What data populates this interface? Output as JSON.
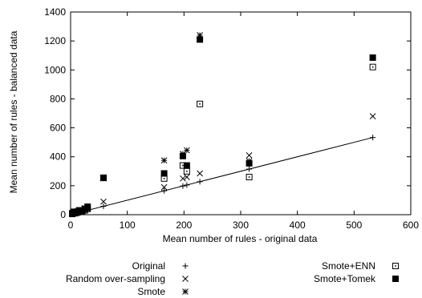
{
  "chart_data": {
    "type": "scatter",
    "xlabel": "Mean number of rules - original data",
    "ylabel": "Mean number of rules - balanced data",
    "xlim": [
      0,
      600
    ],
    "ylim": [
      0,
      1400
    ],
    "xticks": [
      0,
      100,
      200,
      300,
      400,
      500,
      600
    ],
    "yticks": [
      0,
      200,
      400,
      600,
      800,
      1000,
      1200,
      1400
    ],
    "grid": false,
    "legend_position": "bottom",
    "reference_line": {
      "from": [
        0,
        0
      ],
      "to": [
        533,
        533
      ]
    },
    "series": [
      {
        "name": "Original",
        "marker": "plus",
        "points": [
          [
            3,
            3
          ],
          [
            5,
            5
          ],
          [
            8,
            8
          ],
          [
            10,
            10
          ],
          [
            12,
            12
          ],
          [
            15,
            15
          ],
          [
            18,
            18
          ],
          [
            20,
            20
          ],
          [
            22,
            22
          ],
          [
            25,
            25
          ],
          [
            27,
            27
          ],
          [
            30,
            30
          ],
          [
            58,
            58
          ],
          [
            165,
            165
          ],
          [
            198,
            198
          ],
          [
            205,
            205
          ],
          [
            228,
            228
          ],
          [
            315,
            315
          ],
          [
            533,
            533
          ]
        ]
      },
      {
        "name": "Random over-sampling",
        "marker": "cross",
        "points": [
          [
            3,
            5
          ],
          [
            6,
            10
          ],
          [
            10,
            14
          ],
          [
            14,
            20
          ],
          [
            18,
            25
          ],
          [
            22,
            30
          ],
          [
            26,
            38
          ],
          [
            30,
            40
          ],
          [
            58,
            90
          ],
          [
            165,
            190
          ],
          [
            198,
            250
          ],
          [
            205,
            260
          ],
          [
            228,
            285
          ],
          [
            315,
            410
          ],
          [
            533,
            680
          ]
        ]
      },
      {
        "name": "Smote",
        "marker": "star",
        "points": [
          [
            3,
            8
          ],
          [
            8,
            15
          ],
          [
            12,
            25
          ],
          [
            18,
            30
          ],
          [
            25,
            45
          ],
          [
            30,
            55
          ],
          [
            58,
            250
          ],
          [
            165,
            375
          ],
          [
            198,
            420
          ],
          [
            205,
            445
          ],
          [
            228,
            1240
          ],
          [
            315,
            370
          ],
          [
            533,
            1085
          ]
        ]
      },
      {
        "name": "Smote+ENN",
        "marker": "square-open",
        "points": [
          [
            3,
            5
          ],
          [
            8,
            10
          ],
          [
            12,
            15
          ],
          [
            18,
            22
          ],
          [
            25,
            30
          ],
          [
            30,
            40
          ],
          [
            58,
            255
          ],
          [
            165,
            250
          ],
          [
            198,
            340
          ],
          [
            205,
            300
          ],
          [
            228,
            765
          ],
          [
            315,
            260
          ],
          [
            533,
            1020
          ]
        ]
      },
      {
        "name": "Smote+Tomek",
        "marker": "square-filled",
        "points": [
          [
            3,
            10
          ],
          [
            6,
            20
          ],
          [
            10,
            15
          ],
          [
            15,
            30
          ],
          [
            20,
            25
          ],
          [
            25,
            40
          ],
          [
            30,
            55
          ],
          [
            58,
            255
          ],
          [
            165,
            285
          ],
          [
            198,
            405
          ],
          [
            205,
            340
          ],
          [
            228,
            1210
          ],
          [
            315,
            355
          ],
          [
            533,
            1085
          ]
        ]
      }
    ]
  }
}
